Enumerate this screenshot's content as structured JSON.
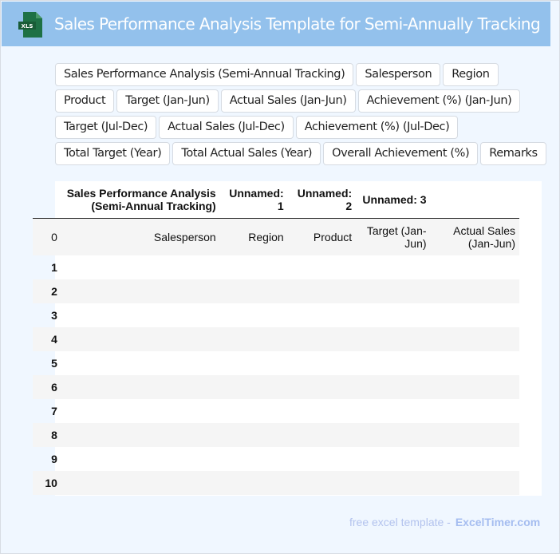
{
  "header": {
    "title": "Sales Performance Analysis Template for Semi-Annually Tracking",
    "logo_text": "XLS",
    "logo_color": "#1e7145"
  },
  "columns": [
    "Sales Performance Analysis (Semi-Annual Tracking)",
    "Salesperson",
    "Region",
    "Product",
    "Target (Jan-Jun)",
    "Actual Sales (Jan-Jun)",
    "Achievement (%) (Jan-Jun)",
    "Target (Jul-Dec)",
    "Actual Sales (Jul-Dec)",
    "Achievement (%) (Jul-Dec)",
    "Total Target (Year)",
    "Total Actual Sales (Year)",
    "Overall Achievement (%)",
    "Remarks"
  ],
  "table": {
    "header_row": [
      "",
      "Sales Performance Analysis (Semi-Annual Tracking)",
      "Unnamed: 1",
      "Unnamed: 2",
      "Unnamed: 3",
      ""
    ],
    "second_row": [
      "0",
      "Salesperson",
      "Region",
      "Product",
      "Target (Jan-Jun)",
      "Actual Sales (Jan-Jun)"
    ],
    "row_index": [
      "1",
      "2",
      "3",
      "4",
      "5",
      "6",
      "7",
      "8",
      "9",
      "10"
    ]
  },
  "footer": {
    "text": "free excel template -",
    "brand": "ExcelTimer.com"
  }
}
